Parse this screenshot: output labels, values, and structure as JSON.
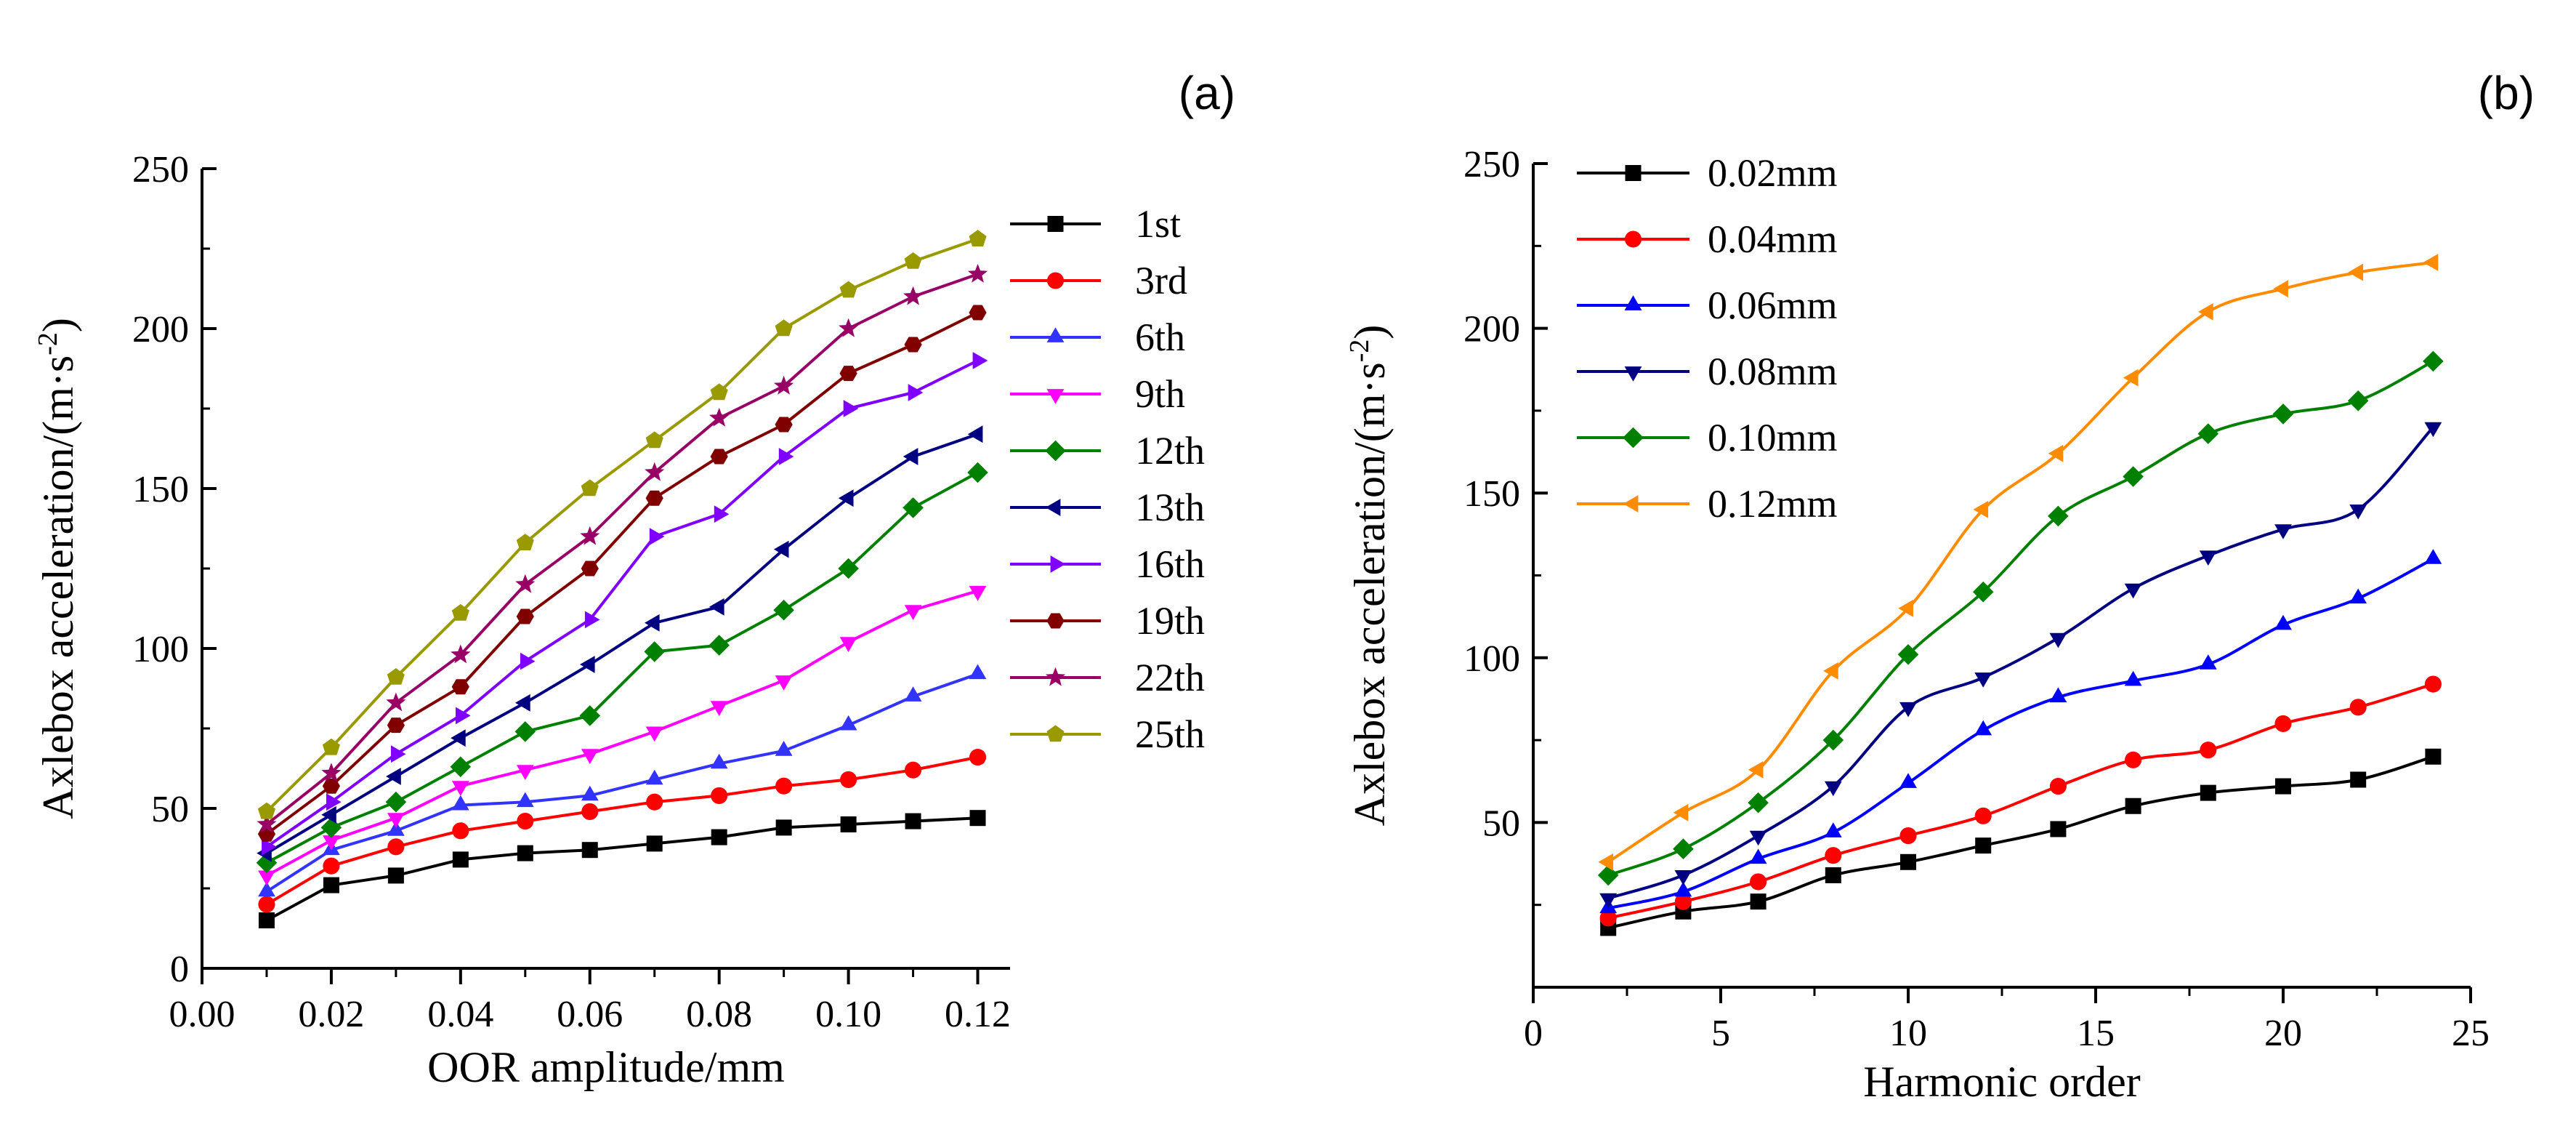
{
  "chart_data": [
    {
      "type": "line",
      "panel_label": "(a)",
      "xlabel": "OOR amplitude/mm",
      "ylabel": "Axlebox acceleration/(m·s",
      "ylabel_sup": "-2",
      "ylabel_close": ")",
      "xlim": [
        0.0,
        0.125
      ],
      "ylim": [
        0,
        250
      ],
      "x_ticks": [
        0.0,
        0.02,
        0.04,
        0.06,
        0.08,
        0.1,
        0.12
      ],
      "x_tick_labels": [
        "0.00",
        "0.02",
        "0.04",
        "0.06",
        "0.08",
        "0.10",
        "0.12"
      ],
      "y_ticks": [
        0,
        50,
        100,
        150,
        200,
        250
      ],
      "y_tick_labels": [
        "0",
        "50",
        "100",
        "150",
        "200",
        "250"
      ],
      "legend_position": "right",
      "x": [
        0.01,
        0.02,
        0.03,
        0.04,
        0.05,
        0.06,
        0.07,
        0.08,
        0.09,
        0.1,
        0.11,
        0.12
      ],
      "series": [
        {
          "name": "1st",
          "color": "#000000",
          "marker": "square",
          "values": [
            15,
            26,
            29,
            34,
            36,
            37,
            39,
            41,
            44,
            45,
            46,
            47
          ]
        },
        {
          "name": "3rd",
          "color": "#ff0000",
          "marker": "circle",
          "values": [
            20,
            32,
            38,
            43,
            46,
            49,
            52,
            54,
            57,
            59,
            62,
            66
          ]
        },
        {
          "name": "6th",
          "color": "#3333ff",
          "marker": "triangle-up",
          "values": [
            24,
            37,
            43,
            51,
            52,
            54,
            59,
            64,
            68,
            76,
            85,
            92
          ]
        },
        {
          "name": "9th",
          "color": "#ff00ff",
          "marker": "triangle-down",
          "values": [
            29,
            40,
            47,
            57,
            62,
            67,
            74,
            82,
            90,
            102,
            112,
            118
          ]
        },
        {
          "name": "12th",
          "color": "#008000",
          "marker": "diamond",
          "values": [
            33,
            44,
            52,
            63,
            74,
            79,
            99,
            101,
            112,
            125,
            144,
            155
          ]
        },
        {
          "name": "13th",
          "color": "#000080",
          "marker": "triangle-left",
          "values": [
            36,
            48,
            60,
            72,
            83,
            95,
            108,
            113,
            131,
            147,
            160,
            167
          ]
        },
        {
          "name": "16th",
          "color": "#8000ff",
          "marker": "triangle-right",
          "values": [
            38,
            52,
            67,
            79,
            96,
            109,
            135,
            142,
            160,
            175,
            180,
            190
          ]
        },
        {
          "name": "19th",
          "color": "#800000",
          "marker": "hexagon",
          "values": [
            42,
            57,
            76,
            88,
            110,
            125,
            147,
            160,
            170,
            186,
            195,
            205
          ]
        },
        {
          "name": "22th",
          "color": "#990066",
          "marker": "star",
          "values": [
            45,
            61,
            83,
            98,
            120,
            135,
            155,
            172,
            182,
            200,
            210,
            217
          ]
        },
        {
          "name": "25th",
          "color": "#999900",
          "marker": "pentagon",
          "values": [
            49,
            69,
            91,
            111,
            133,
            150,
            165,
            180,
            200,
            212,
            221,
            228
          ]
        }
      ]
    },
    {
      "type": "line",
      "panel_label": "(b)",
      "xlabel": "Harmonic order",
      "ylabel": "Axlebox acceleration/(m·s",
      "ylabel_sup": "-2",
      "ylabel_close": ")",
      "xlim": [
        0,
        25
      ],
      "ylim": [
        0,
        250
      ],
      "x_ticks": [
        0,
        5,
        10,
        15,
        20,
        25
      ],
      "x_tick_labels": [
        "0",
        "5",
        "10",
        "15",
        "20",
        "25"
      ],
      "y_ticks": [
        50,
        100,
        150,
        200,
        250
      ],
      "y_tick_labels": [
        "50",
        "100",
        "150",
        "200",
        "250"
      ],
      "legend_position": "top-left",
      "x": [
        2,
        4,
        6,
        8,
        10,
        12,
        14,
        16,
        18,
        20,
        22,
        24
      ],
      "series": [
        {
          "name": "0.02mm",
          "color": "#000000",
          "marker": "square",
          "values": [
            18,
            23,
            26,
            34,
            38,
            43,
            48,
            55,
            59,
            61,
            63,
            70
          ]
        },
        {
          "name": "0.04mm",
          "color": "#ff0000",
          "marker": "circle",
          "values": [
            21,
            26,
            32,
            40,
            46,
            52,
            61,
            69,
            72,
            80,
            85,
            92
          ]
        },
        {
          "name": "0.06mm",
          "color": "#0000ff",
          "marker": "triangle-up",
          "values": [
            24,
            29,
            39,
            47,
            62,
            78,
            88,
            93,
            98,
            110,
            118,
            130
          ]
        },
        {
          "name": "0.08mm",
          "color": "#000080",
          "marker": "triangle-down",
          "values": [
            27,
            34,
            46,
            61,
            85,
            94,
            106,
            121,
            131,
            139,
            145,
            170
          ]
        },
        {
          "name": "0.10mm",
          "color": "#008000",
          "marker": "diamond",
          "values": [
            34,
            42,
            56,
            75,
            101,
            120,
            143,
            155,
            168,
            174,
            178,
            190
          ]
        },
        {
          "name": "0.12mm",
          "color": "#ff8c00",
          "marker": "triangle-left",
          "values": [
            38,
            53,
            66,
            96,
            115,
            145,
            162,
            185,
            205,
            212,
            217,
            220
          ]
        }
      ]
    }
  ]
}
